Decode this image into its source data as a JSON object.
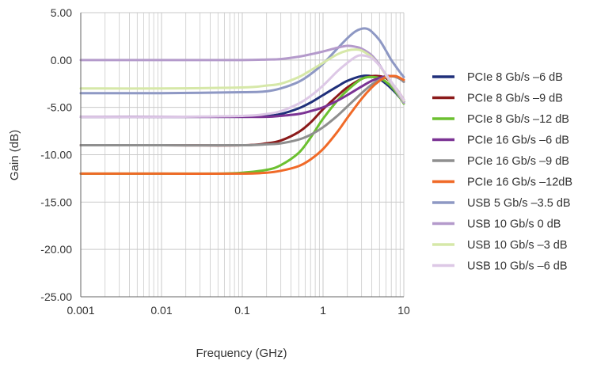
{
  "chart_data": {
    "type": "line",
    "xlabel": "Frequency (GHz)",
    "ylabel": "Gain (dB)",
    "x_scale": "log",
    "xlim": [
      0.001,
      10
    ],
    "ylim": [
      -25,
      5
    ],
    "x_tick_labels": [
      "0.001",
      "0.01",
      "0.1",
      "1",
      "10"
    ],
    "x_tick_values": [
      0.001,
      0.01,
      0.1,
      1,
      10
    ],
    "y_tick_labels": [
      "5.00",
      "0.00",
      "-5.00",
      "-10.00",
      "-15.00",
      "-20.00",
      "-25.00"
    ],
    "y_tick_values": [
      5,
      0,
      -5,
      -10,
      -15,
      -20,
      -25
    ],
    "grid": true,
    "legend_position": "right",
    "series": [
      {
        "name": "PCIe 8 Gb/s –6 dB",
        "color": "#1f2f7a",
        "x": [
          0.001,
          0.01,
          0.1,
          0.2,
          0.3,
          0.5,
          0.7,
          1,
          1.5,
          2,
          3,
          4,
          5,
          6,
          7,
          8,
          9,
          10
        ],
        "y": [
          -6,
          -6,
          -6,
          -5.9,
          -5.7,
          -5.1,
          -4.5,
          -3.7,
          -2.8,
          -2.2,
          -1.7,
          -1.7,
          -2.0,
          -2.5,
          -3.0,
          -3.5,
          -4.0,
          -4.4
        ]
      },
      {
        "name": "PCIe 8 Gb/s –9 dB",
        "color": "#8b1a1a",
        "x": [
          0.001,
          0.01,
          0.1,
          0.2,
          0.3,
          0.5,
          0.7,
          1,
          1.5,
          2,
          3,
          4,
          5,
          6,
          7,
          8,
          9,
          10
        ],
        "y": [
          -9,
          -9,
          -9,
          -8.8,
          -8.5,
          -7.6,
          -6.6,
          -5.2,
          -3.8,
          -2.9,
          -2.0,
          -1.7,
          -1.7,
          -1.9,
          -2.4,
          -3.0,
          -3.6,
          -4.2
        ]
      },
      {
        "name": "PCIe 8 Gb/s –12 dB",
        "color": "#6cc030",
        "x": [
          0.001,
          0.01,
          0.05,
          0.1,
          0.2,
          0.3,
          0.5,
          0.7,
          1,
          1.5,
          2,
          3,
          4,
          5,
          6,
          7,
          8,
          9,
          10
        ],
        "y": [
          -12,
          -12,
          -12,
          -11.9,
          -11.6,
          -11.1,
          -9.8,
          -8.2,
          -6.2,
          -4.3,
          -3.2,
          -2.0,
          -1.8,
          -1.9,
          -2.3,
          -2.8,
          -3.4,
          -4.0,
          -4.6
        ]
      },
      {
        "name": "PCIe 16 Gb/s –6 dB",
        "color": "#7b3394",
        "x": [
          0.001,
          0.01,
          0.1,
          0.2,
          0.3,
          0.5,
          0.7,
          1,
          1.5,
          2,
          3,
          4,
          5,
          6,
          7,
          8,
          9,
          10
        ],
        "y": [
          -6,
          -6,
          -6,
          -6,
          -5.9,
          -5.7,
          -5.4,
          -5.0,
          -4.3,
          -3.7,
          -2.8,
          -2.2,
          -1.9,
          -1.7,
          -1.7,
          -1.8,
          -2.0,
          -2.3
        ]
      },
      {
        "name": "PCIe 16 Gb/s –9 dB",
        "color": "#8f8f8f",
        "x": [
          0.001,
          0.01,
          0.1,
          0.2,
          0.3,
          0.5,
          0.7,
          1,
          1.5,
          2,
          3,
          4,
          5,
          6,
          7,
          8,
          9,
          10
        ],
        "y": [
          -9,
          -9,
          -9,
          -8.9,
          -8.8,
          -8.4,
          -7.9,
          -7.1,
          -5.9,
          -4.9,
          -3.5,
          -2.6,
          -2.1,
          -1.8,
          -1.7,
          -1.8,
          -2.0,
          -2.3
        ]
      },
      {
        "name": "PCIe 16 Gb/s –12dB",
        "color": "#f06a28",
        "x": [
          0.001,
          0.01,
          0.1,
          0.2,
          0.3,
          0.5,
          0.7,
          1,
          1.5,
          2,
          3,
          4,
          5,
          6,
          7,
          8,
          9,
          10
        ],
        "y": [
          -12,
          -12,
          -12,
          -11.9,
          -11.7,
          -11.2,
          -10.5,
          -9.4,
          -7.6,
          -6.1,
          -4.1,
          -2.9,
          -2.2,
          -1.8,
          -1.7,
          -1.7,
          -1.9,
          -2.1
        ]
      },
      {
        "name": "USB 5 Gb/s –3.5 dB",
        "color": "#8e98c4",
        "x": [
          0.001,
          0.01,
          0.1,
          0.2,
          0.3,
          0.5,
          0.7,
          1,
          1.5,
          2,
          2.5,
          3,
          3.5,
          4,
          5,
          6,
          7,
          8,
          9,
          10
        ],
        "y": [
          -3.5,
          -3.5,
          -3.4,
          -3.3,
          -3.0,
          -2.3,
          -1.5,
          -0.4,
          1.2,
          2.3,
          3.0,
          3.3,
          3.3,
          3.0,
          2.1,
          1.0,
          0.0,
          -0.7,
          -1.3,
          -1.8
        ]
      },
      {
        "name": "USB 10 Gb/s 0 dB",
        "color": "#b49acb",
        "x": [
          0.001,
          0.01,
          0.1,
          0.2,
          0.3,
          0.5,
          0.7,
          1,
          1.5,
          2,
          2.5,
          3,
          4,
          5,
          6,
          7,
          8,
          9,
          10
        ],
        "y": [
          0,
          0,
          0,
          0.05,
          0.1,
          0.35,
          0.6,
          0.9,
          1.3,
          1.5,
          1.4,
          1.2,
          0.5,
          -0.5,
          -1.6,
          -2.5,
          -3.2,
          -3.9,
          -4.5
        ]
      },
      {
        "name": "USB 10 Gb/s –3 dB",
        "color": "#d6e8a8",
        "x": [
          0.001,
          0.01,
          0.1,
          0.2,
          0.3,
          0.5,
          0.7,
          1,
          1.5,
          2,
          2.5,
          3,
          4,
          5,
          6,
          7,
          8,
          9,
          10
        ],
        "y": [
          -3,
          -3,
          -2.9,
          -2.7,
          -2.5,
          -1.8,
          -1.1,
          -0.3,
          0.6,
          1.0,
          1.1,
          1.0,
          0.3,
          -0.6,
          -1.6,
          -2.4,
          -3.1,
          -3.7,
          -4.3
        ]
      },
      {
        "name": "USB 10 Gb/s –6 dB",
        "color": "#ddc8e6",
        "x": [
          0.001,
          0.01,
          0.1,
          0.2,
          0.3,
          0.5,
          0.7,
          1,
          1.5,
          2,
          2.5,
          3,
          4,
          5,
          6,
          7,
          8,
          9,
          10
        ],
        "y": [
          -6,
          -6,
          -5.9,
          -5.7,
          -5.4,
          -4.6,
          -3.8,
          -2.7,
          -1.2,
          -0.3,
          0.3,
          0.5,
          0.2,
          -0.6,
          -1.5,
          -2.3,
          -3.0,
          -3.6,
          -4.2
        ]
      }
    ]
  }
}
